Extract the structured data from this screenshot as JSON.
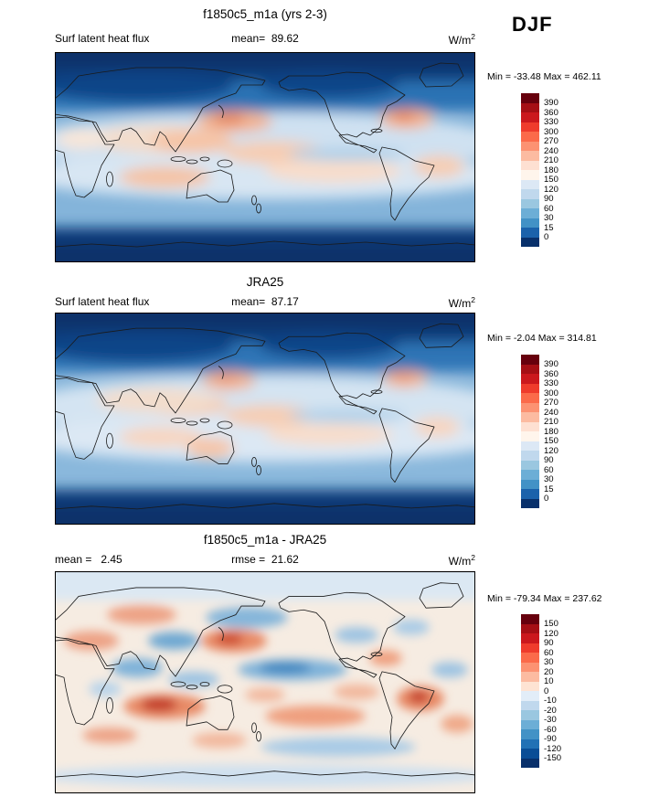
{
  "season_label": "DJF",
  "panels": [
    {
      "title": "f1850c5_m1a (yrs 2-3)",
      "left": "Surf latent heat flux",
      "center": "mean=  89.62",
      "units_base": "W/m",
      "units_exp": "2",
      "minmax": "Min = -33.48 Max = 462.11"
    },
    {
      "title": "JRA25",
      "left": "Surf latent heat flux",
      "center": "mean=  87.17",
      "units_base": "W/m",
      "units_exp": "2",
      "minmax": "Min = -2.04 Max = 314.81"
    },
    {
      "title": "f1850c5_m1a - JRA25",
      "left": "mean =   2.45",
      "center": "rmse =  21.62",
      "units_base": "W/m",
      "units_exp": "2",
      "minmax": "Min = -79.34 Max = 237.62"
    }
  ],
  "chart_data": [
    {
      "type": "heatmap",
      "title": "f1850c5_m1a (yrs 2-3)",
      "variable": "Surf latent heat flux",
      "season": "DJF",
      "units": "W/m^2",
      "mean": 89.62,
      "min": -33.48,
      "max": 462.11,
      "contour_levels": [
        0,
        15,
        30,
        60,
        90,
        120,
        150,
        180,
        210,
        240,
        270,
        300,
        330,
        360,
        390
      ],
      "colorbar_ticks_top_to_bottom": [
        "390",
        "360",
        "330",
        "300",
        "270",
        "240",
        "210",
        "180",
        "150",
        "120",
        "90",
        "60",
        "30",
        "15",
        "0"
      ],
      "palette_top_to_bottom": [
        "#67000d",
        "#a50f15",
        "#cb181d",
        "#ef3b2c",
        "#fb6a4a",
        "#fc9272",
        "#fcbba1",
        "#fee0d2",
        "#fff5ec",
        "#dce8f5",
        "#c0d8ed",
        "#9ac7e0",
        "#6caed6",
        "#4292c6",
        "#1b62ab",
        "#08306b"
      ]
    },
    {
      "type": "heatmap",
      "title": "JRA25",
      "variable": "Surf latent heat flux",
      "season": "DJF",
      "units": "W/m^2",
      "mean": 87.17,
      "min": -2.04,
      "max": 314.81,
      "contour_levels": [
        0,
        15,
        30,
        60,
        90,
        120,
        150,
        180,
        210,
        240,
        270,
        300,
        330,
        360,
        390
      ],
      "colorbar_ticks_top_to_bottom": [
        "390",
        "360",
        "330",
        "300",
        "270",
        "240",
        "210",
        "180",
        "150",
        "120",
        "90",
        "60",
        "30",
        "15",
        "0"
      ],
      "palette_top_to_bottom": [
        "#67000d",
        "#a50f15",
        "#cb181d",
        "#ef3b2c",
        "#fb6a4a",
        "#fc9272",
        "#fcbba1",
        "#fee0d2",
        "#fff5ec",
        "#dce8f5",
        "#c0d8ed",
        "#9ac7e0",
        "#6caed6",
        "#4292c6",
        "#1b62ab",
        "#08306b"
      ]
    },
    {
      "type": "heatmap",
      "title": "f1850c5_m1a - JRA25",
      "season": "DJF",
      "units": "W/m^2",
      "mean": 2.45,
      "rmse": 21.62,
      "min": -79.34,
      "max": 237.62,
      "contour_levels": [
        -150,
        -120,
        -90,
        -60,
        -30,
        -20,
        -10,
        0,
        10,
        20,
        30,
        60,
        90,
        120,
        150
      ],
      "colorbar_ticks_top_to_bottom": [
        "150",
        "120",
        "90",
        "60",
        "30",
        "20",
        "10",
        "0",
        "-10",
        "-20",
        "-30",
        "-60",
        "-90",
        "-120",
        "-150"
      ],
      "palette_top_to_bottom": [
        "#67000d",
        "#a50f15",
        "#cb181d",
        "#ef3b2c",
        "#fb6a4a",
        "#fc9272",
        "#fcbba1",
        "#fee3d3",
        "#e2edf8",
        "#c0d8ed",
        "#9ac7e0",
        "#6caed6",
        "#4292c6",
        "#2171b5",
        "#0a4d96",
        "#08306b"
      ]
    }
  ]
}
